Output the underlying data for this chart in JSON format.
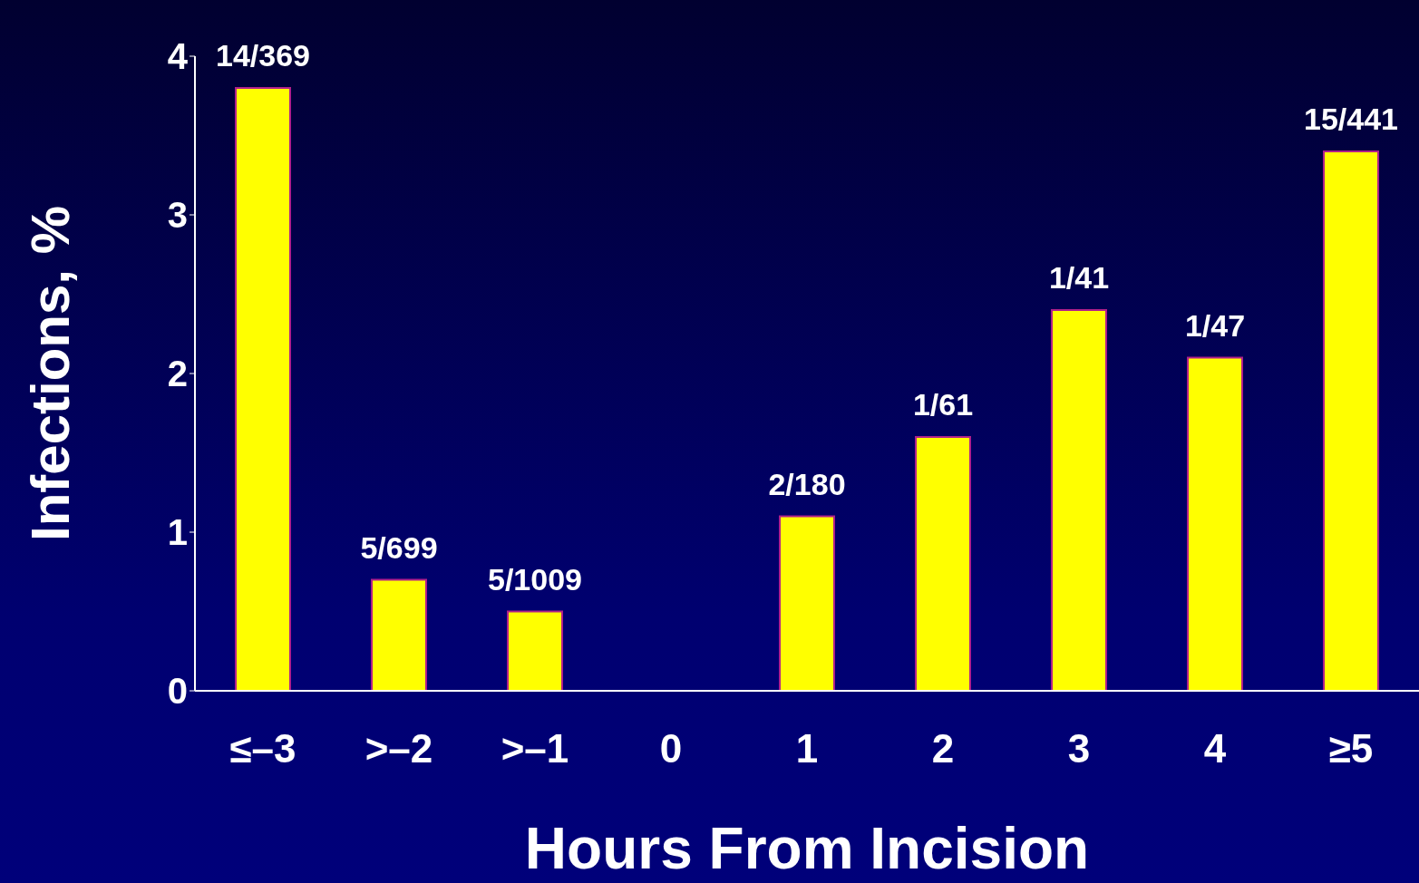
{
  "chart_data": {
    "type": "bar",
    "xlabel": "Hours From Incision",
    "ylabel": "Infections, %",
    "categories": [
      "≤–3",
      ">–2",
      ">–1",
      "0",
      "1",
      "2",
      "3",
      "4",
      "≥5"
    ],
    "values": [
      3.8,
      0.7,
      0.5,
      null,
      1.1,
      1.6,
      2.4,
      2.1,
      3.4
    ],
    "value_labels": [
      "14/369",
      "5/699",
      "5/1009",
      null,
      "2/180",
      "1/61",
      "1/41",
      "1/47",
      "15/441"
    ],
    "color": "#ffff00",
    "ylim": [
      0,
      4
    ],
    "yticks": [
      0,
      1,
      2,
      3,
      4
    ],
    "grid": false,
    "legend": false
  }
}
